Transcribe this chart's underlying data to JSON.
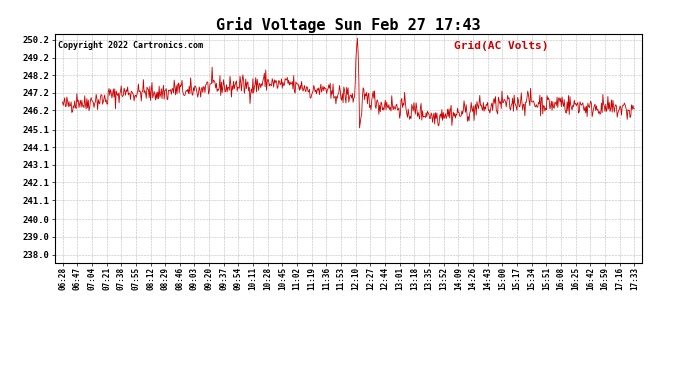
{
  "title": "Grid Voltage Sun Feb 27 17:43",
  "copyright": "Copyright 2022 Cartronics.com",
  "legend_label": "Grid(AC Volts)",
  "ylabel_ticks": [
    238.0,
    239.0,
    240.0,
    241.1,
    242.1,
    243.1,
    244.1,
    245.1,
    246.2,
    247.2,
    248.2,
    249.2,
    250.2
  ],
  "ylim": [
    237.55,
    250.55
  ],
  "x_tick_labels": [
    "06:28",
    "06:47",
    "07:04",
    "07:21",
    "07:38",
    "07:55",
    "08:12",
    "08:29",
    "08:46",
    "09:03",
    "09:20",
    "09:37",
    "09:54",
    "10:11",
    "10:28",
    "10:45",
    "11:02",
    "11:19",
    "11:36",
    "11:53",
    "12:10",
    "12:27",
    "12:44",
    "13:01",
    "13:18",
    "13:35",
    "13:52",
    "14:09",
    "14:26",
    "14:43",
    "15:00",
    "15:17",
    "15:34",
    "15:51",
    "16:08",
    "16:25",
    "16:42",
    "16:59",
    "17:16",
    "17:33"
  ],
  "line_color": "#cc0000",
  "grid_color": "#bbbbbb",
  "background_color": "#ffffff",
  "title_fontsize": 11,
  "copyright_fontsize": 6,
  "legend_fontsize": 8,
  "tick_fontsize": 5.5,
  "ytick_fontsize": 6.5
}
